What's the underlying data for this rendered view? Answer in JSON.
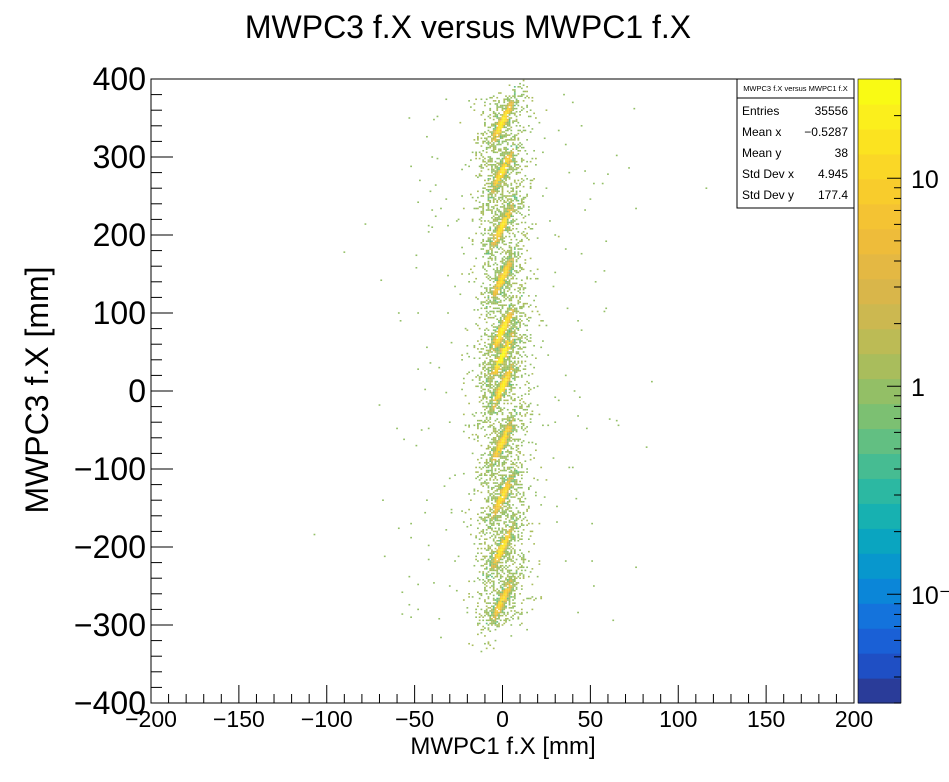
{
  "chart_data": {
    "type": "heatmap",
    "title": "MWPC3 f.X versus MWPC1 f.X",
    "xlabel": "MWPC1 f.X [mm]",
    "ylabel": "MWPC3 f.X [mm]",
    "xlim": [
      -200,
      200
    ],
    "ylim": [
      -400,
      400
    ],
    "x_ticks": [
      -200,
      -150,
      -100,
      -50,
      0,
      50,
      100,
      150,
      200
    ],
    "y_ticks": [
      -400,
      -300,
      -200,
      -100,
      0,
      100,
      200,
      300,
      400
    ],
    "x_tick_labels": [
      "−200",
      "−150",
      "−100",
      "−50",
      "0",
      "50",
      "100",
      "150",
      "200"
    ],
    "y_tick_labels": [
      "−400",
      "−300",
      "−200",
      "−100",
      "0",
      "100",
      "200",
      "300",
      "400"
    ],
    "color_scale": "log",
    "z_ticks": [
      0.1,
      1,
      10
    ],
    "z_tick_labels": [
      "10⁻",
      "1",
      "10"
    ],
    "z_range": [
      0.03,
      30
    ],
    "palette": [
      "#2a3c99",
      "#1f4fc4",
      "#1a60d6",
      "#1473dc",
      "#0b86d8",
      "#0897cd",
      "#0aa5c0",
      "#17b1b1",
      "#2cb8a2",
      "#46bc92",
      "#62bf82",
      "#7cc072",
      "#93bf66",
      "#a9bd5c",
      "#bcbb55",
      "#ccb850",
      "#d9b64a",
      "#e4b843",
      "#eebc3a",
      "#f4c333",
      "#f8cc2c",
      "#fad726",
      "#fbe320",
      "#fbef1c",
      "#f9fa14"
    ],
    "clusters": [
      {
        "x": 0,
        "y": 345,
        "peak": 20
      },
      {
        "x": 0,
        "y": 282,
        "peak": 18
      },
      {
        "x": 0,
        "y": 212,
        "peak": 18
      },
      {
        "x": 0,
        "y": 145,
        "peak": 16
      },
      {
        "x": 0,
        "y": 78,
        "peak": 24
      },
      {
        "x": 0,
        "y": 45,
        "peak": 30
      },
      {
        "x": 0,
        "y": 5,
        "peak": 22
      },
      {
        "x": 0,
        "y": -65,
        "peak": 18
      },
      {
        "x": 0,
        "y": -135,
        "peak": 16
      },
      {
        "x": 0,
        "y": -200,
        "peak": 18
      },
      {
        "x": 0,
        "y": -268,
        "peak": 14
      }
    ]
  },
  "stats_box": {
    "title": "MWPC3 f.X versus MWPC1 f.X",
    "rows": [
      {
        "label": "Entries",
        "value": "35556"
      },
      {
        "label": "Mean x",
        "value": "−0.5287"
      },
      {
        "label": "Mean y",
        "value": "38"
      },
      {
        "label": "Std Dev x",
        "value": "4.945"
      },
      {
        "label": "Std Dev y",
        "value": "177.4"
      }
    ]
  }
}
